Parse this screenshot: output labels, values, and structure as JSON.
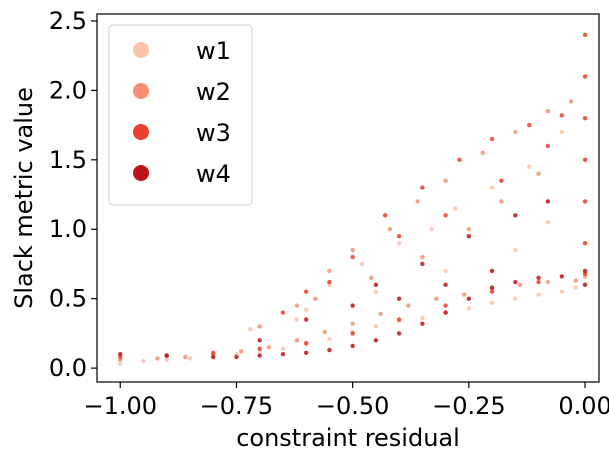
{
  "chart_data": {
    "type": "scatter",
    "title": "",
    "xlabel": "constraint residual",
    "ylabel": "Slack metric value",
    "xlim": [
      -1.05,
      0.03
    ],
    "ylim": [
      -0.1,
      2.55
    ],
    "xticks": [
      -1.0,
      -0.75,
      -0.5,
      -0.25,
      0.0
    ],
    "xtick_labels": [
      "−1.00",
      "−0.75",
      "−0.50",
      "−0.25",
      "0.00"
    ],
    "yticks": [
      0.0,
      0.5,
      1.0,
      1.5,
      2.0,
      2.5
    ],
    "ytick_labels": [
      "0.0",
      "0.5",
      "1.0",
      "1.5",
      "2.0",
      "2.5"
    ],
    "grid": false,
    "legend_position": "top-left",
    "series": [
      {
        "name": "w1",
        "color": "#fcc3ab",
        "points": [
          [
            -1.0,
            0.03
          ],
          [
            -0.95,
            0.05
          ],
          [
            -0.9,
            0.06
          ],
          [
            -0.85,
            0.07
          ],
          [
            -0.8,
            0.08
          ],
          [
            -0.75,
            0.1
          ],
          [
            -0.7,
            0.12
          ],
          [
            -0.65,
            0.14
          ],
          [
            -0.6,
            0.17
          ],
          [
            -0.55,
            0.21
          ],
          [
            -0.5,
            0.26
          ],
          [
            -0.45,
            0.3
          ],
          [
            -0.4,
            0.34
          ],
          [
            -0.35,
            0.36
          ],
          [
            -0.3,
            0.4
          ],
          [
            -0.25,
            0.43
          ],
          [
            -0.2,
            0.47
          ],
          [
            -0.15,
            0.5
          ],
          [
            -0.1,
            0.53
          ],
          [
            -0.05,
            0.55
          ],
          [
            -0.02,
            0.58
          ],
          [
            0.0,
            0.6
          ],
          [
            -0.72,
            0.28
          ],
          [
            -0.6,
            0.42
          ],
          [
            -0.55,
            0.6
          ],
          [
            -0.48,
            0.75
          ],
          [
            -0.4,
            0.9
          ],
          [
            -0.33,
            1.0
          ],
          [
            -0.28,
            1.15
          ],
          [
            -0.2,
            1.3
          ],
          [
            -0.12,
            1.45
          ],
          [
            -0.05,
            1.7
          ],
          [
            -0.62,
            0.35
          ],
          [
            -0.45,
            0.55
          ],
          [
            -0.3,
            0.7
          ],
          [
            -0.15,
            0.85
          ],
          [
            -0.08,
            1.05
          ]
        ]
      },
      {
        "name": "w2",
        "color": "#f98f6f",
        "points": [
          [
            -1.0,
            0.06
          ],
          [
            -0.92,
            0.07
          ],
          [
            -0.86,
            0.08
          ],
          [
            -0.8,
            0.1
          ],
          [
            -0.74,
            0.12
          ],
          [
            -0.68,
            0.15
          ],
          [
            -0.62,
            0.2
          ],
          [
            -0.56,
            0.26
          ],
          [
            -0.5,
            0.32
          ],
          [
            -0.44,
            0.39
          ],
          [
            -0.38,
            0.45
          ],
          [
            -0.32,
            0.5
          ],
          [
            -0.26,
            0.53
          ],
          [
            -0.2,
            0.57
          ],
          [
            -0.14,
            0.6
          ],
          [
            -0.08,
            0.62
          ],
          [
            -0.02,
            0.63
          ],
          [
            0.0,
            0.66
          ],
          [
            -0.7,
            0.3
          ],
          [
            -0.62,
            0.45
          ],
          [
            -0.55,
            0.7
          ],
          [
            -0.5,
            0.85
          ],
          [
            -0.42,
            1.0
          ],
          [
            -0.36,
            1.2
          ],
          [
            -0.3,
            1.35
          ],
          [
            -0.22,
            1.55
          ],
          [
            -0.15,
            1.7
          ],
          [
            -0.08,
            1.85
          ],
          [
            -0.03,
            1.92
          ],
          [
            -0.58,
            0.5
          ],
          [
            -0.46,
            0.65
          ],
          [
            -0.35,
            0.8
          ],
          [
            -0.25,
            1.0
          ],
          [
            -0.18,
            1.2
          ],
          [
            -0.1,
            1.4
          ]
        ]
      },
      {
        "name": "w3",
        "color": "#e83f2e",
        "points": [
          [
            -1.0,
            0.08
          ],
          [
            -0.9,
            0.09
          ],
          [
            -0.8,
            0.11
          ],
          [
            -0.7,
            0.14
          ],
          [
            -0.6,
            0.18
          ],
          [
            -0.5,
            0.25
          ],
          [
            -0.4,
            0.35
          ],
          [
            -0.3,
            0.45
          ],
          [
            -0.2,
            0.55
          ],
          [
            -0.1,
            0.62
          ],
          [
            0.0,
            0.68
          ],
          [
            0.0,
            0.9
          ],
          [
            0.0,
            1.2
          ],
          [
            0.0,
            1.5
          ],
          [
            0.0,
            1.8
          ],
          [
            0.0,
            2.1
          ],
          [
            0.0,
            2.4
          ],
          [
            -0.6,
            0.55
          ],
          [
            -0.5,
            0.8
          ],
          [
            -0.43,
            1.1
          ],
          [
            -0.35,
            1.3
          ],
          [
            -0.27,
            1.5
          ],
          [
            -0.2,
            1.65
          ],
          [
            -0.12,
            1.75
          ],
          [
            -0.05,
            1.82
          ],
          [
            -0.65,
            0.4
          ],
          [
            -0.55,
            0.62
          ],
          [
            -0.4,
            0.95
          ],
          [
            -0.3,
            1.1
          ],
          [
            -0.18,
            1.35
          ],
          [
            -0.08,
            1.6
          ]
        ]
      },
      {
        "name": "w4",
        "color": "#bc141a",
        "points": [
          [
            -1.0,
            0.1
          ],
          [
            -0.9,
            0.09
          ],
          [
            -0.8,
            0.08
          ],
          [
            -0.75,
            0.08
          ],
          [
            -0.7,
            0.09
          ],
          [
            -0.65,
            0.1
          ],
          [
            -0.6,
            0.11
          ],
          [
            -0.55,
            0.13
          ],
          [
            -0.5,
            0.16
          ],
          [
            -0.45,
            0.2
          ],
          [
            -0.4,
            0.25
          ],
          [
            -0.35,
            0.32
          ],
          [
            -0.3,
            0.4
          ],
          [
            -0.25,
            0.5
          ],
          [
            -0.2,
            0.58
          ],
          [
            -0.15,
            0.62
          ],
          [
            -0.1,
            0.65
          ],
          [
            -0.05,
            0.66
          ],
          [
            0.0,
            0.7
          ],
          [
            0.0,
            0.6
          ],
          [
            -0.7,
            0.2
          ],
          [
            -0.6,
            0.35
          ],
          [
            -0.5,
            0.45
          ],
          [
            -0.45,
            0.6
          ],
          [
            -0.35,
            0.75
          ],
          [
            -0.25,
            0.95
          ],
          [
            -0.15,
            1.1
          ],
          [
            -0.08,
            1.2
          ],
          [
            -0.4,
            0.5
          ],
          [
            -0.3,
            0.6
          ],
          [
            -0.2,
            0.7
          ]
        ]
      }
    ]
  }
}
